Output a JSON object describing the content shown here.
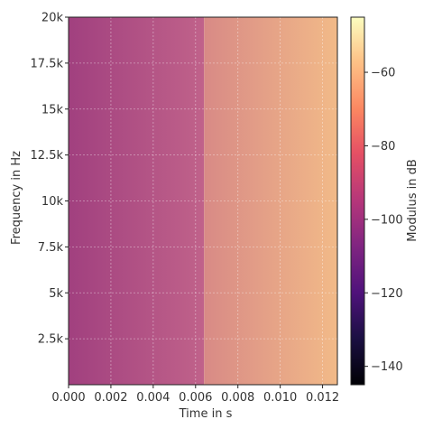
{
  "chart_data": {
    "type": "heatmap",
    "title": "",
    "xlabel": "Time in s",
    "ylabel": "Frequency in Hz",
    "colorbar_label": "Modulus in dB",
    "xlim": [
      0.0,
      0.0127
    ],
    "ylim": [
      0,
      20000
    ],
    "x_ticks": [
      0.0,
      0.002,
      0.004,
      0.006,
      0.008,
      0.01,
      0.012
    ],
    "x_tick_labels": [
      "0.000",
      "0.002",
      "0.004",
      "0.006",
      "0.008",
      "0.010",
      "0.012"
    ],
    "y_ticks": [
      2500,
      5000,
      7500,
      10000,
      12500,
      15000,
      17500,
      20000
    ],
    "y_tick_labels": [
      "2.5k",
      "5k",
      "7.5k",
      "10k",
      "12.5k",
      "15k",
      "17.5k",
      "20k"
    ],
    "colorbar_range": [
      -145,
      -45
    ],
    "colorbar_ticks": [
      -140,
      -120,
      -100,
      -80,
      -60
    ],
    "colorbar_tick_labels": [
      "−140",
      "−120",
      "−100",
      "−80",
      "−60"
    ],
    "colormap": "magma",
    "grid": true,
    "time_bins": [
      0.0,
      0.0064,
      0.0127
    ],
    "modulus_db": [
      -103,
      -83
    ],
    "series_columns": [
      {
        "x0": 0.0,
        "x1": 0.0064,
        "value": -103
      },
      {
        "x0": 0.0064,
        "x1": 0.0127,
        "value": -83
      }
    ]
  }
}
